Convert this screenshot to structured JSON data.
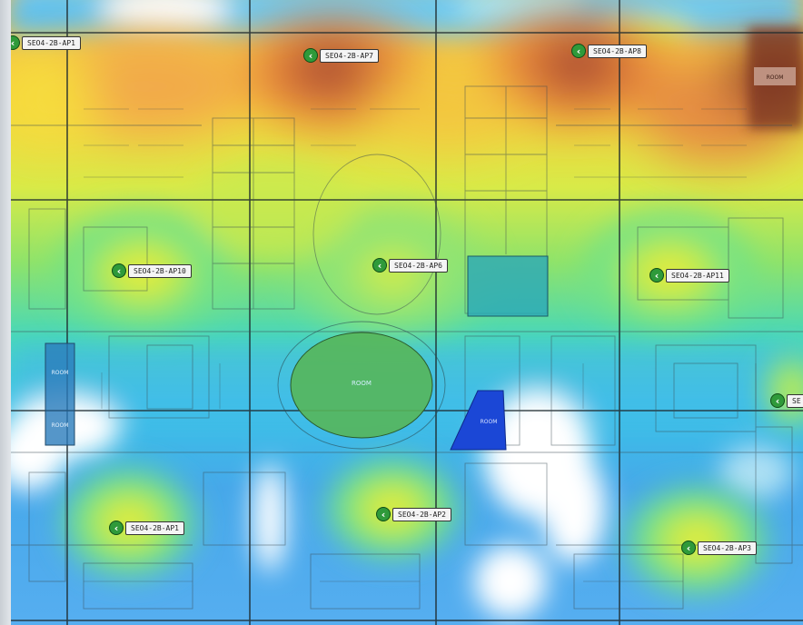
{
  "floor_plan": {
    "room_labels": {
      "center_room": "ROOM",
      "left_room_upper": "ROOM",
      "left_room_lower": "ROOM",
      "right_upper_room": "ROOM",
      "blue_room": "ROOM"
    }
  },
  "heatmap": {
    "colors": {
      "strongest": "#9c4a32",
      "strong": "#e27838",
      "good": "#f6e034",
      "fair": "#7ee66a",
      "weak": "#35d2dc",
      "poor": "#3a9ae4",
      "none": "#ffffff"
    }
  },
  "access_points": [
    {
      "id": "ap-1",
      "label": "SEO4-2B-AP1",
      "icon": "wifi-access-point-icon"
    },
    {
      "id": "ap-2",
      "label": "SEO4-2B-AP7",
      "icon": "wifi-access-point-icon"
    },
    {
      "id": "ap-3",
      "label": "SEO4-2B-AP8",
      "icon": "wifi-access-point-icon"
    },
    {
      "id": "ap-4",
      "label": "SEO4-2B-AP10",
      "icon": "wifi-access-point-icon"
    },
    {
      "id": "ap-5",
      "label": "SEO4-2B-AP6",
      "icon": "wifi-access-point-icon"
    },
    {
      "id": "ap-6",
      "label": "SEO4-2B-AP11",
      "icon": "wifi-access-point-icon"
    },
    {
      "id": "ap-7",
      "label": "SEO4-2B-AP1",
      "icon": "wifi-access-point-icon"
    },
    {
      "id": "ap-8",
      "label": "SEO4-2B-AP2",
      "icon": "wifi-access-point-icon"
    },
    {
      "id": "ap-9",
      "label": "SEO4-2B-AP3",
      "icon": "wifi-access-point-icon"
    },
    {
      "id": "ap-10",
      "label": "SE",
      "icon": "wifi-access-point-icon"
    }
  ]
}
